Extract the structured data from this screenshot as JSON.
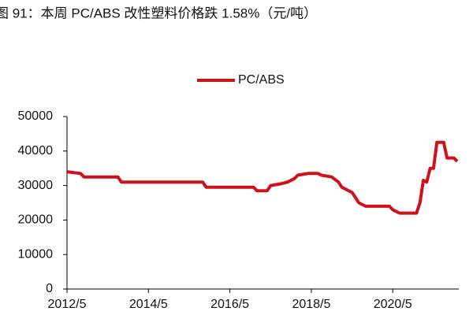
{
  "chart_data": {
    "type": "line",
    "title": "图 91：本周 PC/ABS 改性塑料价格跌 1.58%（元/吨）",
    "x": [
      "2012/5",
      "2012/9",
      "2012/10",
      "2013/8",
      "2013/9",
      "2015/9",
      "2015/10",
      "2016/12",
      "2017/1",
      "2017/4",
      "2017/5",
      "2017/8",
      "2017/10",
      "2017/12",
      "2018/1",
      "2018/4",
      "2018/7",
      "2018/8",
      "2018/11",
      "2019/1",
      "2019/2",
      "2019/5",
      "2019/6",
      "2019/7",
      "2019/9",
      "2020/4",
      "2020/5",
      "2020/7",
      "2020/12",
      "2021/1",
      "2021/2",
      "2021/3",
      "2021/4",
      "2021/5",
      "2021/6",
      "2021/8",
      "2021/9",
      "2021/11",
      "2021/12"
    ],
    "series": [
      {
        "name": "PC/ABS",
        "color": "#d0111b",
        "values": [
          34000,
          33500,
          32500,
          32500,
          31000,
          31000,
          29500,
          29500,
          28500,
          28500,
          30000,
          30500,
          31000,
          32000,
          33000,
          33500,
          33500,
          33000,
          32500,
          31000,
          29500,
          28000,
          26500,
          25000,
          24000,
          24000,
          23000,
          22000,
          22000,
          25000,
          31500,
          31000,
          35000,
          35000,
          42500,
          42500,
          38000,
          38000,
          37000
        ]
      }
    ],
    "xlim": [
      "2012/5",
      "2021/12"
    ],
    "xticks": [
      "2012/5",
      "2014/5",
      "2016/5",
      "2018/5",
      "2020/5"
    ],
    "ylim": [
      0,
      50000
    ],
    "yticks": [
      0,
      10000,
      20000,
      30000,
      40000,
      50000
    ],
    "grid": false,
    "legend": "top"
  }
}
